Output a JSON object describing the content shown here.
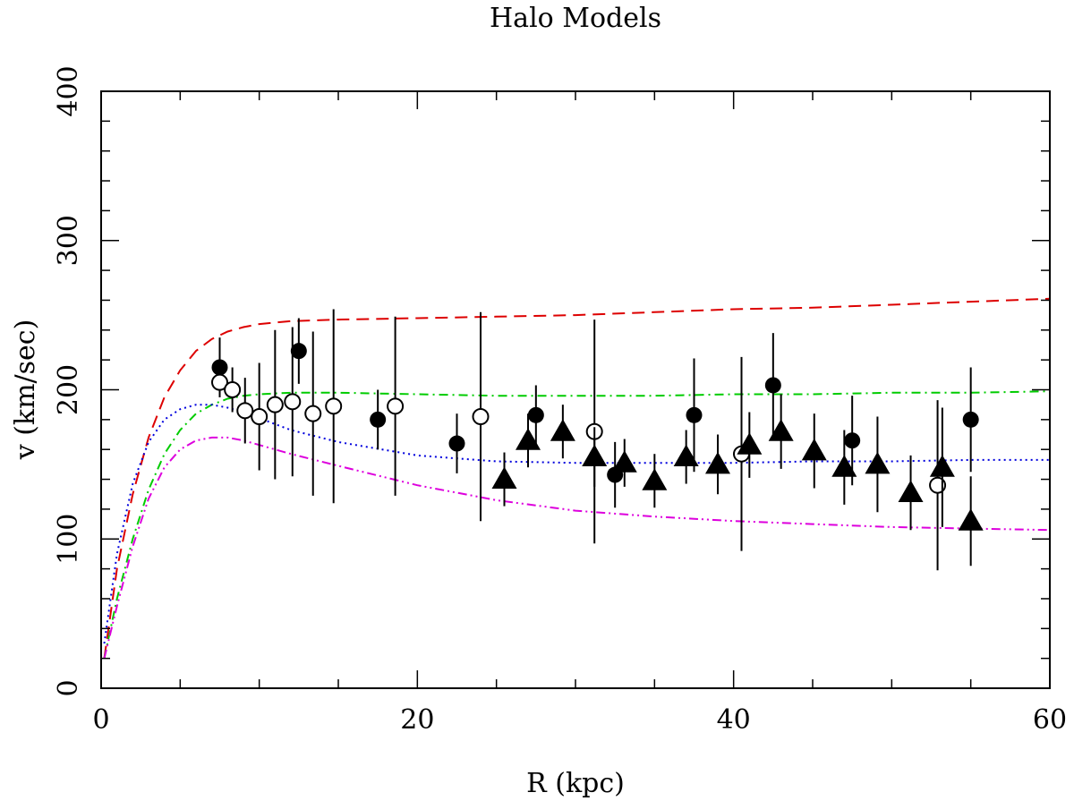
{
  "chart_data": {
    "type": "scatter",
    "title": "Halo Models",
    "xlabel": "R (kpc)",
    "ylabel": "v (km/sec)",
    "xlim": [
      0,
      60
    ],
    "ylim": [
      0,
      400
    ],
    "x_ticks": [
      "0",
      "20",
      "40",
      "60"
    ],
    "y_ticks": [
      "0",
      "100",
      "200",
      "300",
      "400"
    ],
    "legend": "none",
    "colors": {
      "red_dashed": "#dd0000",
      "green_dashdot": "#00cc00",
      "blue_dotted": "#0000dd",
      "magenta_dashdotdot": "#dd00dd",
      "points": "#000000"
    },
    "model_curves": [
      {
        "name": "red-dashed",
        "style": "dashed",
        "x": [
          0.2,
          1,
          2,
          3,
          4,
          5,
          6,
          7,
          8,
          9,
          10,
          12,
          15,
          20,
          25,
          30,
          35,
          40,
          45,
          50,
          55,
          60
        ],
        "y": [
          20,
          80,
          130,
          168,
          195,
          213,
          226,
          234,
          239,
          242,
          244,
          246,
          247,
          248,
          249,
          250,
          252,
          254,
          255,
          257,
          259,
          261
        ]
      },
      {
        "name": "green-dashdot",
        "style": "dashdot",
        "x": [
          0.2,
          1,
          2,
          3,
          4,
          5,
          6,
          7,
          8,
          9,
          10,
          12,
          15,
          20,
          25,
          30,
          35,
          40,
          45,
          50,
          55,
          60
        ],
        "y": [
          20,
          60,
          100,
          133,
          157,
          173,
          184,
          190,
          194,
          196,
          197,
          198,
          198,
          197,
          196,
          196,
          196,
          197,
          197,
          198,
          198,
          199
        ]
      },
      {
        "name": "blue-dotted",
        "style": "dotted",
        "x": [
          0.2,
          1,
          2,
          3,
          4,
          5,
          6,
          7,
          8,
          9,
          10,
          12,
          15,
          20,
          25,
          30,
          35,
          40,
          45,
          50,
          55,
          60
        ],
        "y": [
          30,
          90,
          137,
          165,
          180,
          187,
          190,
          190,
          188,
          185,
          181,
          173,
          165,
          156,
          152,
          151,
          151,
          151,
          152,
          152,
          153,
          153
        ]
      },
      {
        "name": "magenta-dashdotdot",
        "style": "dashdotdot",
        "x": [
          0.2,
          1,
          2,
          3,
          4,
          5,
          6,
          7,
          8,
          9,
          10,
          12,
          15,
          20,
          25,
          30,
          35,
          40,
          45,
          50,
          55,
          60
        ],
        "y": [
          20,
          55,
          95,
          127,
          148,
          160,
          166,
          168,
          168,
          166,
          163,
          157,
          149,
          136,
          126,
          119,
          115,
          112,
          110,
          108,
          107,
          106
        ]
      }
    ],
    "series": [
      {
        "name": "filled-circles",
        "marker": "filled_circle",
        "x": [
          7.5,
          12.5,
          17.5,
          22.5,
          27.5,
          32.5,
          37.5,
          42.5,
          47.5,
          55.0
        ],
        "y": [
          215,
          226,
          180,
          164,
          183,
          143,
          183,
          203,
          166,
          180
        ],
        "err": [
          20,
          22,
          20,
          20,
          20,
          22,
          38,
          35,
          30,
          35
        ]
      },
      {
        "name": "open-circles",
        "marker": "open_circle",
        "x": [
          7.5,
          8.3,
          9.1,
          10.0,
          11.0,
          12.1,
          13.4,
          14.7,
          18.6,
          24.0,
          31.2,
          40.5,
          52.9
        ],
        "y": [
          205,
          200,
          186,
          182,
          190,
          192,
          184,
          189,
          189,
          182,
          172,
          157,
          136
        ],
        "err": [
          10,
          15,
          22,
          36,
          50,
          50,
          55,
          65,
          60,
          70,
          75,
          65,
          57
        ]
      },
      {
        "name": "filled-triangles",
        "marker": "filled_triangle",
        "x": [
          25.5,
          27.0,
          29.2,
          31.2,
          33.1,
          35.0,
          37.0,
          39.0,
          41.0,
          43.0,
          45.1,
          47.0,
          49.1,
          51.2,
          53.2,
          55.0
        ],
        "y": [
          140,
          166,
          172,
          155,
          151,
          139,
          155,
          150,
          163,
          172,
          159,
          148,
          150,
          131,
          148,
          112
        ],
        "err": [
          18,
          18,
          18,
          20,
          16,
          18,
          18,
          20,
          22,
          25,
          25,
          25,
          32,
          25,
          40,
          30
        ]
      }
    ]
  }
}
